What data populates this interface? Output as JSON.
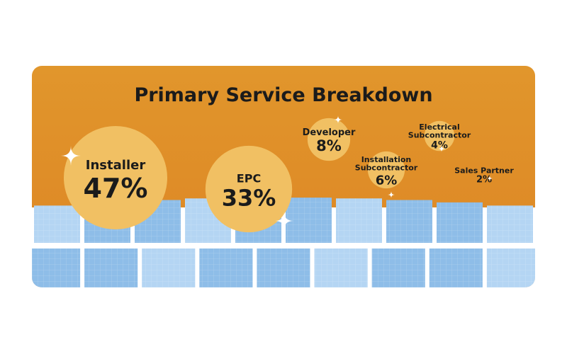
{
  "title": "Primary Service Breakdown",
  "colors": {
    "background_top": "#e1962c",
    "background_bottom": "#dd8524",
    "bubble": "#f1c063",
    "panel": "#8ebde8",
    "panel_light": "#b4d5f3",
    "panel_frame": "#ffffff",
    "text": "#1b1b1b"
  },
  "chart_data": {
    "type": "bubble",
    "title": "Primary Service Breakdown",
    "unit": "%",
    "categories": [
      "Installer",
      "EPC",
      "Developer",
      "Installation Subcontractor",
      "Electrical Subcontractor",
      "Sales Partner"
    ],
    "values": [
      47,
      33,
      8,
      6,
      4,
      2
    ],
    "labels": [
      {
        "lines": [
          "Installer"
        ],
        "value": "47%"
      },
      {
        "lines": [
          "EPC"
        ],
        "value": "33%"
      },
      {
        "lines": [
          "Developer"
        ],
        "value": "8%"
      },
      {
        "lines": [
          "Installation",
          "Subcontractor"
        ],
        "value": "6%"
      },
      {
        "lines": [
          "Electrical",
          "Subcontractor"
        ],
        "value": "4%"
      },
      {
        "lines": [
          "Sales Partner"
        ],
        "value": "2%"
      }
    ]
  }
}
